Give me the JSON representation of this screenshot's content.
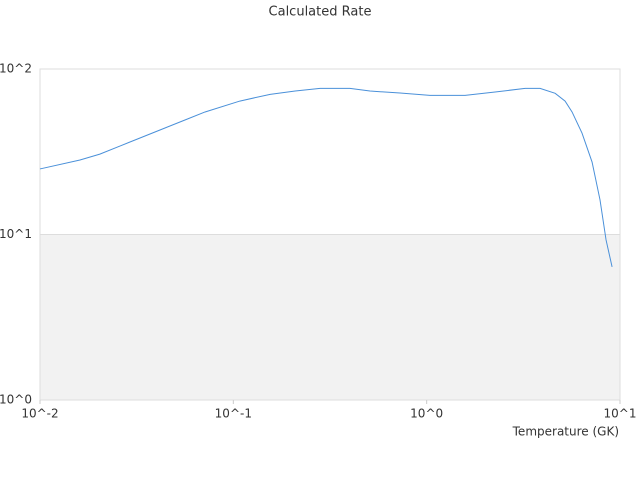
{
  "chart_data": {
    "type": "line",
    "title": "Calculated Rate",
    "x_label": "Temperature (GK)",
    "x_scale": "log",
    "y_scale": "log",
    "xlim": [
      0.01,
      10
    ],
    "ylim": [
      1,
      100
    ],
    "xticks": [
      {
        "value": 0.01,
        "label": "10^-2"
      },
      {
        "value": 0.1,
        "label": "10^-1"
      },
      {
        "value": 1,
        "label": "10^0"
      },
      {
        "value": 10,
        "label": "10^1"
      }
    ],
    "yticks": [
      {
        "value": 1,
        "label": "10^0"
      },
      {
        "value": 10,
        "label": "10^1"
      },
      {
        "value": 100,
        "label": "10^2"
      }
    ],
    "grid": true,
    "bands": true,
    "band_color": "#f2f2f2",
    "series": [
      {
        "color": "#4a90d9",
        "x": [
          0.01,
          0.0161,
          0.0204,
          0.026,
          0.0329,
          0.0443,
          0.0562,
          0.0714,
          0.108,
          0.155,
          0.209,
          0.281,
          0.401,
          0.509,
          0.728,
          1.04,
          1.58,
          2.26,
          3.23,
          3.86,
          4.62,
          5.2,
          5.65,
          6.36,
          7.17,
          7.88,
          8.47,
          9.1
        ],
        "values": [
          24.9,
          28.2,
          30.6,
          34.3,
          38.3,
          44.0,
          49.2,
          55.0,
          64.0,
          70.3,
          73.6,
          76.4,
          76.4,
          73.6,
          71.6,
          69.3,
          69.3,
          72.6,
          76.4,
          76.4,
          71.3,
          64.0,
          55.0,
          41.0,
          27.4,
          16.2,
          9.27,
          6.37
        ]
      }
    ]
  }
}
